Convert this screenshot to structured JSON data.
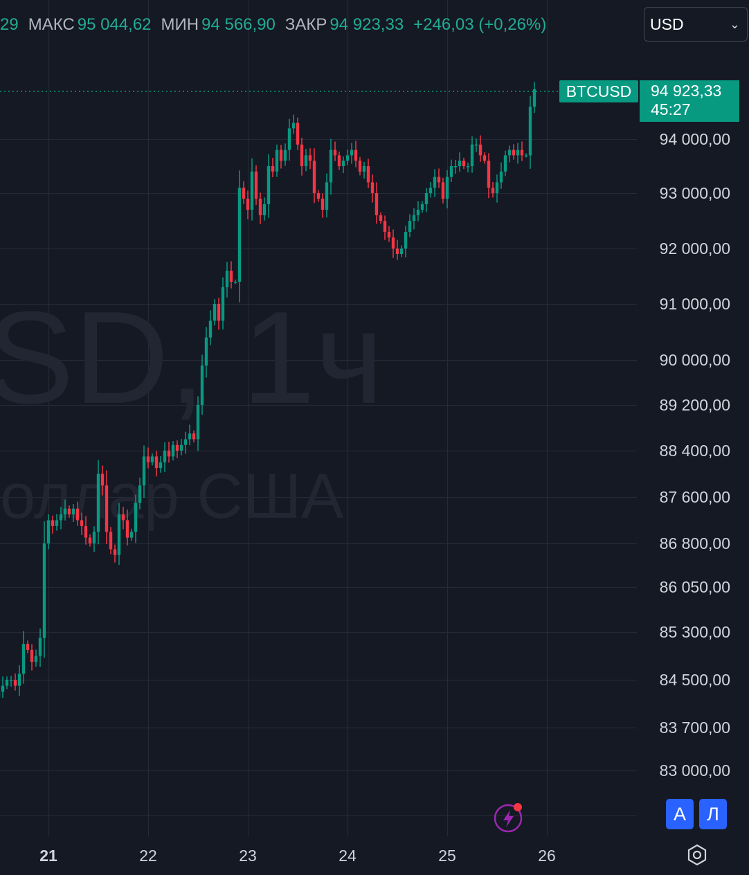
{
  "legend": {
    "open_partial": "29",
    "high_label": "МАКС",
    "high_value": "95 044,62",
    "low_label": "МИН",
    "low_value": "94 566,90",
    "close_label": "ЗАКР",
    "close_value": "94 923,33",
    "change": "+246,03 (+0,26%)"
  },
  "currency_select": {
    "value": "USD"
  },
  "last_price": {
    "symbol": "BTCUSD",
    "price": "94 923,33",
    "countdown": "45:27"
  },
  "watermark": {
    "line1": "SD, 1ч",
    "line2": "оллар США"
  },
  "buttons": {
    "auto": "A",
    "log": "Л"
  },
  "colors": {
    "background": "#151924",
    "up": "#089981",
    "down": "#f23645",
    "grid": "#262a35",
    "axis_text": "#d1d4dc"
  },
  "chart_data": {
    "type": "candlestick",
    "timeframe": "1ч",
    "x_tick_labels": [
      "21",
      "22",
      "23",
      "24",
      "25",
      "26"
    ],
    "y_tick_labels": [
      "94 000,00",
      "93 000,00",
      "92 000,00",
      "91 000,00",
      "90 000,00",
      "89 200,00",
      "88 400,00",
      "87 600,00",
      "86 800,00",
      "86 050,00",
      "85 300,00",
      "84 500,00",
      "83 700,00",
      "83 000,00"
    ],
    "y_tick_values": [
      94000,
      93000,
      92000,
      91000,
      90000,
      89200,
      88400,
      87600,
      86800,
      86050,
      85300,
      84500,
      83700,
      83000
    ],
    "last_close": 94923.33,
    "start_hour_offset": -20,
    "closes": [
      84200,
      84000,
      83900,
      84000,
      84100,
      84300,
      84400,
      84200,
      84300,
      84400,
      84500,
      84500,
      84400,
      84600,
      85100,
      85000,
      84800,
      84900,
      85200,
      86800,
      87200,
      87100,
      87200,
      87300,
      87400,
      87300,
      87400,
      87200,
      87100,
      86900,
      86800,
      87000,
      88000,
      87800,
      87000,
      86700,
      86600,
      87300,
      87200,
      86900,
      87000,
      87500,
      87800,
      88300,
      88200,
      88300,
      88100,
      88200,
      88400,
      88300,
      88500,
      88400,
      88500,
      88600,
      88700,
      88600,
      89200,
      89900,
      90400,
      90700,
      91000,
      90700,
      91300,
      91600,
      91400,
      91400,
      93100,
      92900,
      92700,
      93400,
      92900,
      92600,
      92800,
      93500,
      93400,
      93800,
      93600,
      93800,
      94200,
      94300,
      93900,
      93500,
      93700,
      93600,
      93000,
      92900,
      92700,
      93200,
      93800,
      93700,
      93500,
      93600,
      93700,
      93800,
      93600,
      93400,
      93500,
      93200,
      93000,
      92600,
      92500,
      92300,
      92200,
      92000,
      91900,
      92000,
      92300,
      92500,
      92600,
      92700,
      92800,
      93000,
      93100,
      93300,
      93200,
      92900,
      93300,
      93500,
      93500,
      93600,
      93500,
      93500,
      93900,
      93900,
      93700,
      93600,
      93100,
      93000,
      93200,
      93400,
      93700,
      93800,
      93700,
      93800,
      93700,
      93700,
      94600,
      94923.33
    ]
  }
}
